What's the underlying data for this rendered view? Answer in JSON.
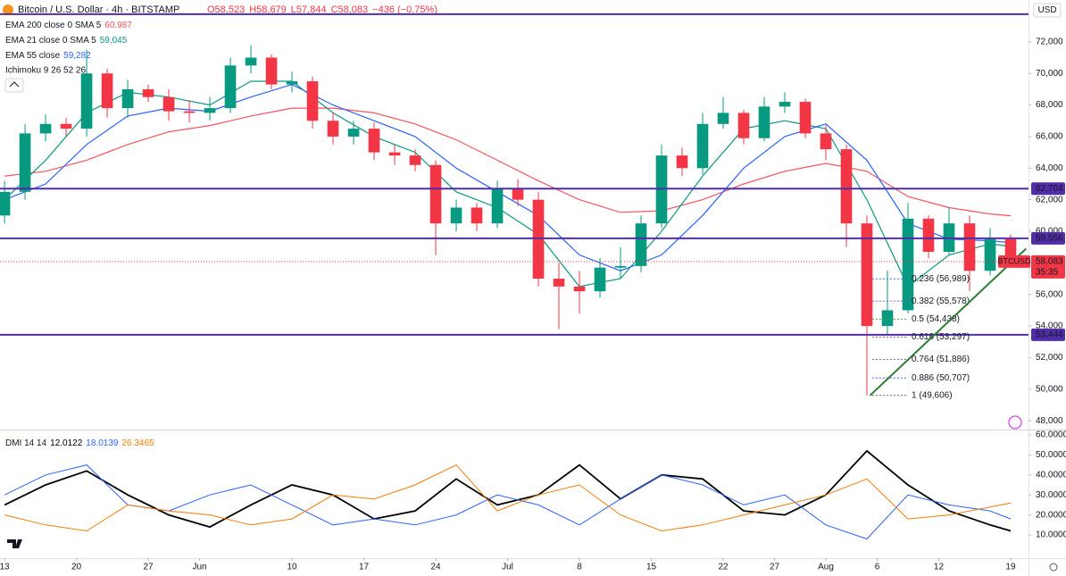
{
  "chart_data": [
    {
      "type": "candlestick",
      "title": "Bitcoin / U.S. Dollar · 4h · BITSTAMP",
      "header_values": [
        "O58,523",
        "H58,679",
        "L57,844",
        "C58,083",
        "−436 (−0.75%)"
      ],
      "legend_extra": "Ichimoku 9 26 52 26",
      "currency": "USD",
      "symbol": "BTCUSD",
      "countdown": "35:35",
      "up_color": "#089981",
      "down_color": "#f23645",
      "x": [
        0,
        2,
        4,
        6,
        8,
        10,
        12,
        14,
        16,
        18,
        20,
        22,
        24,
        26,
        28,
        30,
        32,
        34,
        36,
        38,
        40,
        42,
        44,
        46,
        48,
        50,
        52,
        54,
        56,
        58,
        60,
        62,
        64,
        66,
        68,
        70,
        72,
        74,
        76,
        78,
        80,
        82,
        84,
        86,
        88,
        90,
        92,
        94,
        96,
        98
      ],
      "open": [
        61000,
        62500,
        66200,
        66800,
        66500,
        70000,
        67800,
        69000,
        68500,
        67600,
        67500,
        67800,
        70500,
        71000,
        69300,
        69500,
        67000,
        66000,
        66500,
        65000,
        64800,
        64200,
        60500,
        61500,
        60500,
        62700,
        62000,
        57000,
        56500,
        56200,
        57700,
        57800,
        60500,
        64800,
        64000,
        66800,
        67500,
        65900,
        67900,
        68200,
        66200,
        65200,
        60500,
        54000,
        55000,
        60800,
        58700,
        60500,
        57500,
        59500
      ],
      "high": [
        63200,
        66800,
        67400,
        67200,
        71500,
        70300,
        69600,
        69300,
        69000,
        68300,
        68500,
        71000,
        71800,
        71200,
        70100,
        69800,
        67500,
        67000,
        66900,
        65500,
        65200,
        64500,
        62000,
        61800,
        63200,
        63300,
        62500,
        58000,
        57500,
        58300,
        59000,
        61000,
        65500,
        65300,
        67500,
        68500,
        67700,
        68500,
        68800,
        68400,
        66700,
        65500,
        61000,
        57500,
        61800,
        61000,
        61500,
        61000,
        60200,
        59800
      ],
      "low": [
        60500,
        62000,
        65700,
        66000,
        66000,
        67200,
        67200,
        68200,
        67000,
        66900,
        67000,
        67500,
        70000,
        69000,
        68800,
        66500,
        65500,
        65500,
        64500,
        64200,
        63800,
        58500,
        60000,
        60000,
        60200,
        61600,
        56500,
        53800,
        54800,
        55800,
        57000,
        57400,
        60200,
        63500,
        63600,
        66500,
        65500,
        65700,
        67500,
        65900,
        64500,
        59000,
        49600,
        53500,
        54800,
        58300,
        58500,
        56200,
        57200,
        57800
      ],
      "close": [
        62500,
        66200,
        66800,
        66500,
        70000,
        67800,
        69000,
        68500,
        67600,
        67500,
        67800,
        70500,
        71000,
        69300,
        69500,
        67000,
        66000,
        66500,
        65000,
        64800,
        64200,
        60500,
        61500,
        60500,
        62700,
        62000,
        57000,
        56500,
        56200,
        57700,
        57800,
        60500,
        64800,
        64000,
        66800,
        67500,
        65900,
        67900,
        68200,
        66200,
        65200,
        60500,
        54000,
        55000,
        60800,
        58700,
        60500,
        57500,
        59500,
        58083
      ],
      "series": [
        {
          "name": "EMA 200 close 0 SMA 5",
          "value_label": "60,987",
          "color": "#f7525f",
          "x": [
            0,
            4,
            8,
            12,
            16,
            20,
            24,
            28,
            32,
            36,
            40,
            44,
            48,
            52,
            56,
            60,
            64,
            68,
            72,
            76,
            80,
            84,
            88,
            92,
            96,
            98
          ],
          "values": [
            63500,
            63800,
            64500,
            65500,
            66300,
            66700,
            67300,
            67800,
            67800,
            67500,
            66800,
            65800,
            64500,
            63200,
            62000,
            61200,
            61300,
            62000,
            63000,
            63800,
            64300,
            63800,
            62200,
            61500,
            61100,
            60987
          ]
        },
        {
          "name": "EMA 21 close 0 SMA 5",
          "value_label": "59,045",
          "color": "#089981",
          "x": [
            0,
            4,
            8,
            12,
            16,
            20,
            24,
            28,
            32,
            36,
            40,
            44,
            48,
            52,
            56,
            60,
            64,
            68,
            72,
            76,
            80,
            84,
            88,
            92,
            96,
            98
          ],
          "values": [
            62000,
            64500,
            67500,
            68800,
            68500,
            68000,
            69500,
            69500,
            67500,
            66000,
            65000,
            62500,
            61500,
            59800,
            56500,
            57000,
            60000,
            63500,
            66500,
            67000,
            66500,
            62000,
            56500,
            58500,
            59200,
            59045
          ]
        },
        {
          "name": "EMA 55 close",
          "value_label": "59,282",
          "color": "#2962ff",
          "x": [
            0,
            4,
            8,
            12,
            16,
            20,
            24,
            28,
            32,
            36,
            40,
            44,
            48,
            52,
            56,
            60,
            64,
            68,
            72,
            76,
            80,
            84,
            88,
            92,
            96,
            98
          ],
          "values": [
            62000,
            63000,
            65500,
            67300,
            67800,
            67600,
            68500,
            69300,
            68000,
            67000,
            66000,
            64000,
            62500,
            61000,
            58500,
            57500,
            58500,
            61000,
            64000,
            66000,
            66800,
            64500,
            60500,
            59500,
            59400,
            59282
          ]
        }
      ],
      "levels": [
        {
          "value": 73750
        },
        {
          "value": 62704,
          "label": "62,704"
        },
        {
          "value": 59556,
          "label": "59,556"
        },
        {
          "value": 53444,
          "label": "53,444"
        }
      ],
      "level_color": "#512da8",
      "last_price": {
        "value": 58083,
        "label": "58,083"
      },
      "fib": [
        {
          "value": 56989,
          "label": "0.236 (56,989)",
          "color": "#2962ff"
        },
        {
          "value": 55578,
          "label": "0.382 (55,578)",
          "color": "#7e57c2"
        },
        {
          "value": 54438,
          "label": "0.5 (54,438)",
          "color": "#43a047"
        },
        {
          "value": 53297,
          "label": "0.618 (53,297)",
          "color": "#7e57c2"
        },
        {
          "value": 51886,
          "label": "0.764 (51,886)",
          "color": "#7e57c2"
        },
        {
          "value": 50707,
          "label": "0.886 (50,707)",
          "color": "#2962ff"
        },
        {
          "value": 49606,
          "label": "1 (49,606)",
          "color": "#555555"
        }
      ],
      "fib_x": [
        84.5,
        88
      ],
      "trendline": {
        "color": "#2e7d32",
        "x": [
          84.3,
          99.5
        ],
        "values": [
          49606,
          58900
        ]
      },
      "xlim": [
        -0.44,
        99.74
      ],
      "ylim": [
        47500,
        74650
      ],
      "yticks": [
        {
          "value": 48000,
          "label": "48,000"
        },
        {
          "value": 50000,
          "label": "50,000"
        },
        {
          "value": 52000,
          "label": "52,000"
        },
        {
          "value": 54000,
          "label": "54,000"
        },
        {
          "value": 56000,
          "label": "56,000"
        },
        {
          "value": 58000,
          "label": "58,000"
        },
        {
          "value": 60000,
          "label": "60,000"
        },
        {
          "value": 62000,
          "label": "62,000"
        },
        {
          "value": 64000,
          "label": "64,000"
        },
        {
          "value": 66000,
          "label": "66,000"
        },
        {
          "value": 68000,
          "label": "68,000"
        },
        {
          "value": 70000,
          "label": "70,000"
        },
        {
          "value": 72000,
          "label": "72,000"
        }
      ],
      "xticks": [
        {
          "value": 0,
          "label": "13"
        },
        {
          "value": 7,
          "label": "20"
        },
        {
          "value": 14,
          "label": "27"
        },
        {
          "value": 19,
          "label": "Jun"
        },
        {
          "value": 28,
          "label": "10"
        },
        {
          "value": 35,
          "label": "17"
        },
        {
          "value": 42,
          "label": "24"
        },
        {
          "value": 49,
          "label": "Jul"
        },
        {
          "value": 56,
          "label": "8"
        },
        {
          "value": 63,
          "label": "15"
        },
        {
          "value": 70,
          "label": "22"
        },
        {
          "value": 75,
          "label": "27"
        },
        {
          "value": 80,
          "label": "Aug"
        },
        {
          "value": 85,
          "label": "6"
        },
        {
          "value": 91,
          "label": "12"
        },
        {
          "value": 98,
          "label": "19"
        }
      ]
    },
    {
      "type": "line",
      "title": "DMI 14 14",
      "xlim": [
        -0.44,
        99.74
      ],
      "ylim": [
        -1.6,
        61.8
      ],
      "yticks": [
        {
          "value": 10,
          "label": "10.0000"
        },
        {
          "value": 20,
          "label": "20.0000"
        },
        {
          "value": 30,
          "label": "30.0000"
        },
        {
          "value": 40,
          "label": "40.0000"
        },
        {
          "value": 50,
          "label": "50.0000"
        },
        {
          "value": 60,
          "label": "60.0000"
        }
      ],
      "x": [
        0,
        4,
        8,
        12,
        16,
        20,
        24,
        28,
        32,
        36,
        40,
        44,
        48,
        52,
        56,
        60,
        64,
        68,
        72,
        76,
        80,
        84,
        88,
        92,
        96,
        98
      ],
      "series": [
        {
          "value_label": "12.0122",
          "color": "#000000",
          "values": [
            25,
            35,
            42,
            30,
            20,
            14,
            25,
            35,
            30,
            18,
            22,
            38,
            25,
            30,
            45,
            28,
            40,
            38,
            22,
            20,
            30,
            52,
            35,
            22,
            15,
            12
          ]
        },
        {
          "value_label": "18.0139",
          "color": "#2962ff",
          "values": [
            30,
            40,
            45,
            25,
            22,
            30,
            35,
            25,
            15,
            18,
            15,
            20,
            30,
            25,
            15,
            28,
            40,
            35,
            25,
            30,
            15,
            8,
            30,
            25,
            22,
            18
          ]
        },
        {
          "value_label": "26.3465",
          "color": "#f57c00",
          "values": [
            20,
            15,
            12,
            25,
            22,
            20,
            15,
            18,
            30,
            28,
            35,
            45,
            22,
            30,
            35,
            20,
            12,
            15,
            20,
            25,
            30,
            38,
            18,
            20,
            24,
            26
          ]
        }
      ]
    }
  ]
}
